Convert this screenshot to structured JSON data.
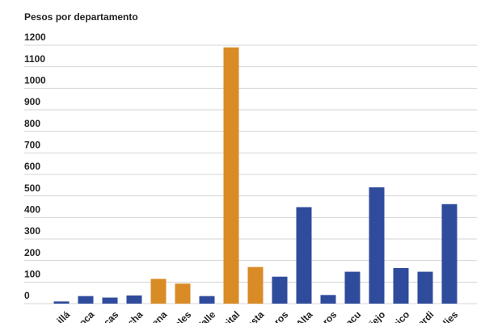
{
  "chart_data": {
    "type": "bar",
    "title": "Pesos por departamento",
    "categories": [
      "illá",
      "roca",
      "cas",
      "cha",
      "uena",
      "ales",
      "Valle",
      "pital",
      "asta",
      "eros",
      "Alta",
      "eros",
      "acu",
      "Viejo",
      "ubico",
      "verdi",
      "ulies"
    ],
    "values": [
      10,
      35,
      28,
      38,
      115,
      93,
      35,
      1190,
      170,
      125,
      448,
      40,
      148,
      540,
      165,
      148,
      462
    ],
    "colors": [
      "#2f4b9c",
      "#2f4b9c",
      "#2f4b9c",
      "#2f4b9c",
      "#d98b26",
      "#d98b26",
      "#2f4b9c",
      "#d98b26",
      "#d98b26",
      "#2f4b9c",
      "#2f4b9c",
      "#2f4b9c",
      "#2f4b9c",
      "#2f4b9c",
      "#2f4b9c",
      "#2f4b9c",
      "#2f4b9c"
    ],
    "ylim": [
      0,
      1200
    ],
    "yticks": [
      0,
      100,
      200,
      300,
      400,
      500,
      600,
      700,
      800,
      900,
      1000,
      1100,
      1200
    ],
    "grid": true
  }
}
